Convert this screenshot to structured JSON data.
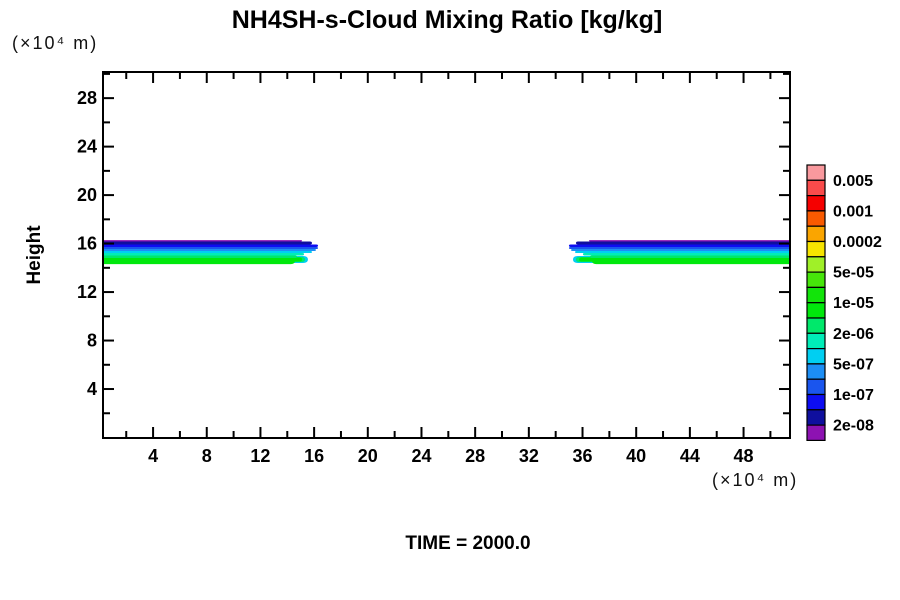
{
  "title": "NH4SH-s-Cloud Mixing Ratio [kg/kg]",
  "time_label": "TIME = 2000.0",
  "y_axis_title": "Height",
  "x_axis_units": "(×10⁴ m)",
  "y_axis_units": "(×10⁴ m)",
  "chart_data": {
    "type": "heatmap",
    "subtype": "filled-contour",
    "title": "NH4SH-s-Cloud Mixing Ratio [kg/kg]",
    "xlabel": "(×10⁴ m)",
    "ylabel": "Height",
    "ylabel_units": "(×10⁴ m)",
    "annotation": "TIME = 2000.0",
    "x_range": [
      0.3,
      51.4
    ],
    "y_range": [
      0,
      30.2
    ],
    "grid": false,
    "x_major_ticks": [
      4,
      8,
      12,
      16,
      20,
      24,
      28,
      32,
      36,
      40,
      44,
      48
    ],
    "x_minor_ticks": [
      2,
      6,
      10,
      14,
      18,
      22,
      26,
      30,
      34,
      38,
      42,
      46,
      50
    ],
    "y_major_ticks": [
      4,
      8,
      12,
      16,
      20,
      24,
      28
    ],
    "y_minor_ticks": [
      2,
      6,
      10,
      14,
      18,
      22,
      26,
      30
    ],
    "colorbar": {
      "position": "right",
      "labels": [
        "0.005",
        "0.001",
        "0.0002",
        "5e-05",
        "1e-05",
        "2e-06",
        "5e-07",
        "1e-07",
        "2e-08"
      ],
      "boundary_values_desc": [
        0.005,
        0.002,
        0.001,
        0.0005,
        0.0002,
        0.0001,
        5e-05,
        2e-05,
        1e-05,
        5e-06,
        2e-06,
        1e-06,
        5e-07,
        2e-07,
        1e-07,
        5e-08,
        2e-08
      ],
      "cell_colors_top_to_bottom": [
        "#F9999E",
        "#F94B4B",
        "#F50000",
        "#F95A00",
        "#FAA500",
        "#F7E400",
        "#A0F028",
        "#46E60A",
        "#12E40A",
        "#00E80C",
        "#00E86B",
        "#00EDB8",
        "#00CFF2",
        "#1C8EF5",
        "#1A55EE",
        "#0D0DF2",
        "#0F0F9E",
        "#8D12B2"
      ]
    },
    "bands": [
      {
        "name": "left-cloud-band",
        "cap_side": "right",
        "x_base": 0.27,
        "lobes": [
          {
            "color": "#00CFF2",
            "x_base": 14.0,
            "x_tip": 15.54,
            "y_top": 14.98,
            "y_bottom": 14.4
          },
          {
            "color": "#00E86B",
            "x_base": 14.0,
            "x_tip": 15.32,
            "y_top": 14.89,
            "y_bottom": 14.48
          },
          {
            "color": "#00E80C",
            "x_base": 14.0,
            "x_tip": 15.1,
            "y_top": 14.85,
            "y_bottom": 14.52
          }
        ],
        "layers": [
          {
            "color": "#8D12B2",
            "y_top": 16.29,
            "y_bottom": 16.17,
            "x_tip": 15.1
          },
          {
            "color": "#0F0F9E",
            "y_top": 16.17,
            "y_bottom": 15.92,
            "x_tip": 15.84
          },
          {
            "color": "#0D0DF2",
            "y_top": 15.92,
            "y_bottom": 15.72,
            "x_tip": 16.29
          },
          {
            "color": "#1A55EE",
            "y_top": 15.72,
            "y_bottom": 15.55,
            "x_tip": 16.29
          },
          {
            "color": "#1C8EF5",
            "y_top": 15.55,
            "y_bottom": 15.39,
            "x_tip": 16.14
          },
          {
            "color": "#00CFF2",
            "y_top": 15.39,
            "y_bottom": 15.22,
            "x_tip": 15.84
          },
          {
            "color": "#00EDB8",
            "y_top": 15.22,
            "y_bottom": 15.02,
            "x_tip": 15.25
          },
          {
            "color": "#00E86B",
            "y_top": 15.02,
            "y_bottom": 14.81,
            "x_tip": 14.72
          },
          {
            "color": "#00E80C",
            "y_top": 14.81,
            "y_bottom": 14.31,
            "x_tip": 14.57
          }
        ]
      },
      {
        "name": "right-cloud-band",
        "cap_side": "left",
        "x_base": 51.45,
        "lobes": [
          {
            "color": "#00CFF2",
            "x_base": 37.5,
            "x_tip": 35.29,
            "y_top": 14.98,
            "y_bottom": 14.4
          },
          {
            "color": "#00E86B",
            "x_base": 37.5,
            "x_tip": 35.51,
            "y_top": 14.89,
            "y_bottom": 14.48
          },
          {
            "color": "#00E80C",
            "x_base": 37.5,
            "x_tip": 35.74,
            "y_top": 14.85,
            "y_bottom": 14.52
          }
        ],
        "layers": [
          {
            "color": "#8D12B2",
            "y_top": 16.29,
            "y_bottom": 16.17,
            "x_tip": 36.48
          },
          {
            "color": "#0F0F9E",
            "y_top": 16.17,
            "y_bottom": 15.92,
            "x_tip": 35.51
          },
          {
            "color": "#0D0DF2",
            "y_top": 15.92,
            "y_bottom": 15.72,
            "x_tip": 34.99
          },
          {
            "color": "#1A55EE",
            "y_top": 15.72,
            "y_bottom": 15.55,
            "x_tip": 34.99
          },
          {
            "color": "#1C8EF5",
            "y_top": 15.55,
            "y_bottom": 15.39,
            "x_tip": 35.14
          },
          {
            "color": "#00CFF2",
            "y_top": 15.39,
            "y_bottom": 15.22,
            "x_tip": 35.44
          },
          {
            "color": "#00EDB8",
            "y_top": 15.22,
            "y_bottom": 15.02,
            "x_tip": 36.03
          },
          {
            "color": "#00E86B",
            "y_top": 15.02,
            "y_bottom": 14.81,
            "x_tip": 36.56
          },
          {
            "color": "#00E80C",
            "y_top": 14.81,
            "y_bottom": 14.31,
            "x_tip": 36.71
          }
        ]
      }
    ]
  }
}
